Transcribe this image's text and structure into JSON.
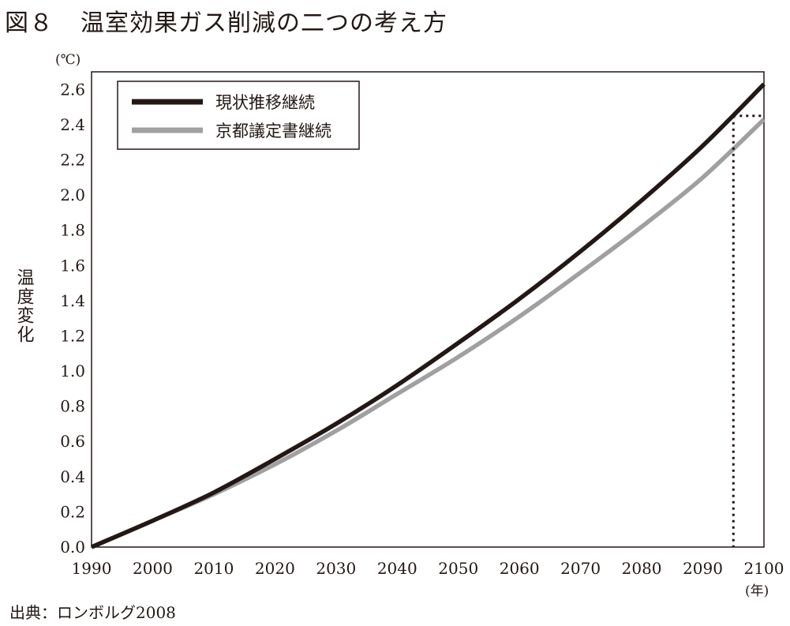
{
  "figure": {
    "number": "図８",
    "title": "温室効果ガス削減の二つの考え方",
    "source": "出典：ロンボルグ2008"
  },
  "chart_data": {
    "type": "line",
    "title": "温室効果ガス削減の二つの考え方",
    "xlabel": "(年)",
    "ylabel": "温度変化",
    "y_unit": "(℃)",
    "xlim": [
      1990,
      2100
    ],
    "ylim": [
      0,
      2.7
    ],
    "x_ticks": [
      1990,
      2000,
      2010,
      2020,
      2030,
      2040,
      2050,
      2060,
      2070,
      2080,
      2090,
      2100
    ],
    "y_ticks": [
      "0.0",
      "0.2",
      "0.4",
      "0.6",
      "0.8",
      "1.0",
      "1.2",
      "1.4",
      "1.6",
      "1.8",
      "2.0",
      "2.2",
      "2.4",
      "2.6"
    ],
    "grid": true,
    "legend_position": "top-left",
    "x": [
      1990,
      2000,
      2010,
      2020,
      2030,
      2040,
      2050,
      2060,
      2070,
      2080,
      2090,
      2100
    ],
    "series": [
      {
        "name": "現状推移継続",
        "color": "#231815",
        "values": [
          0.0,
          0.15,
          0.31,
          0.5,
          0.7,
          0.92,
          1.16,
          1.41,
          1.68,
          1.97,
          2.28,
          2.63
        ]
      },
      {
        "name": "京都議定書継続",
        "color": "#a0a0a0",
        "values": [
          0.0,
          0.15,
          0.3,
          0.47,
          0.66,
          0.87,
          1.08,
          1.31,
          1.56,
          1.82,
          2.1,
          2.43
        ]
      }
    ],
    "annotation": {
      "style": "dotted",
      "x": 2095,
      "y": 2.45
    }
  }
}
